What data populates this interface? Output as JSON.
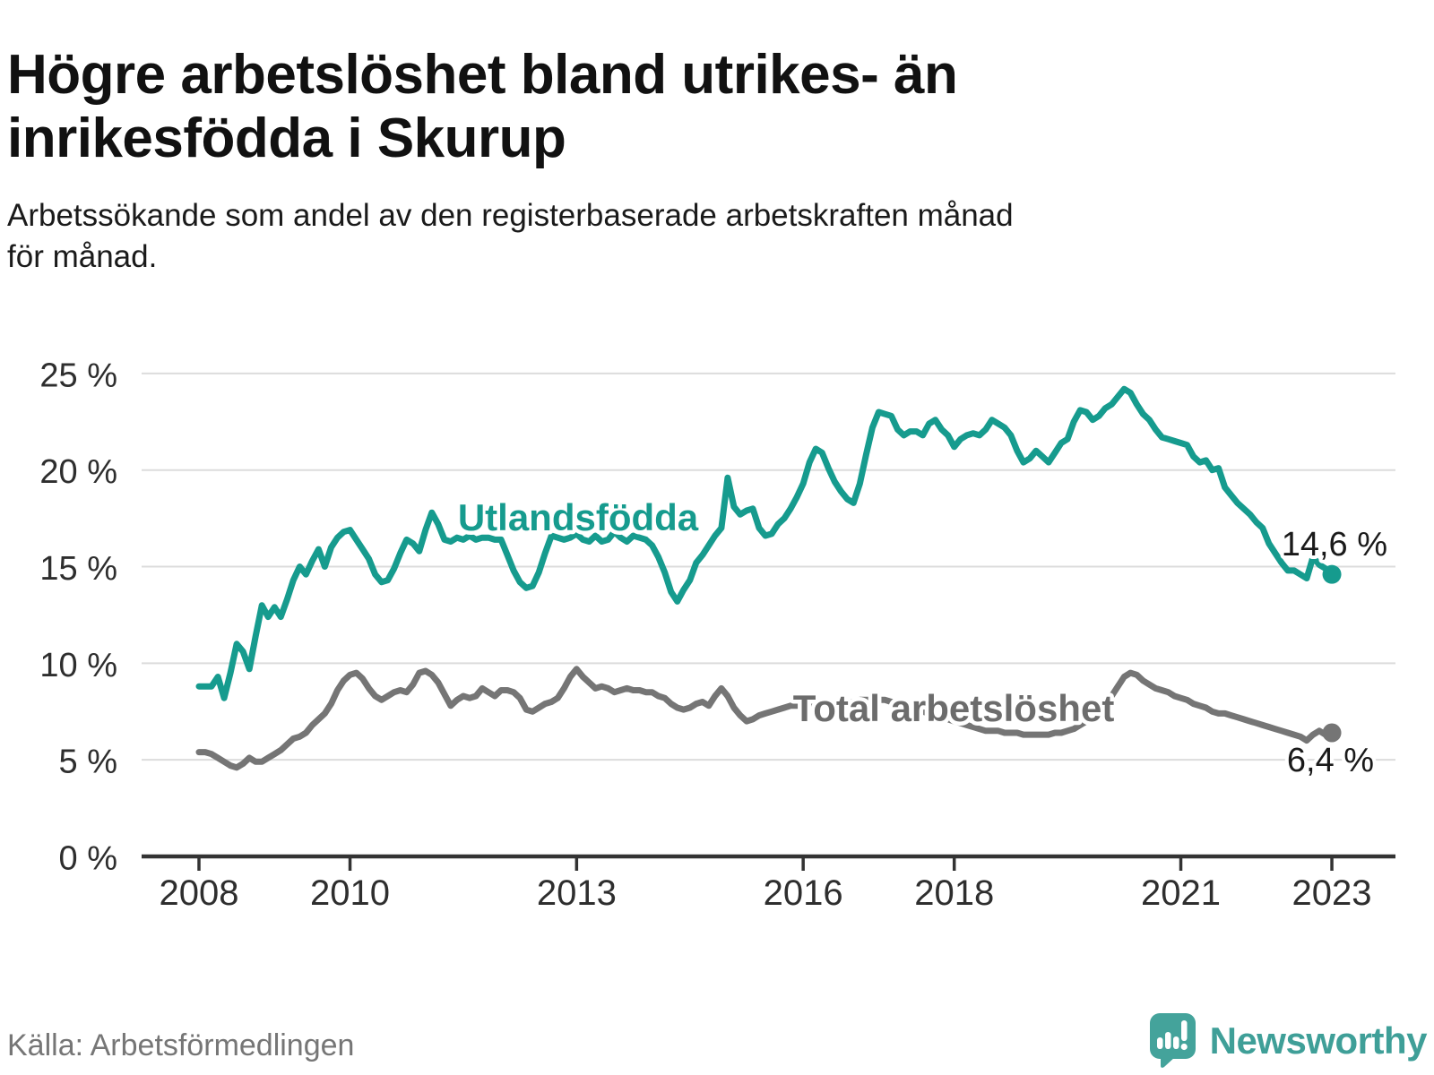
{
  "header": {
    "title": "Högre arbetslöshet bland utrikes- än\ninrikesfödda i Skurup",
    "subtitle": "Arbetssökande som andel av den registerbaserade arbetskraften månad\nför månad."
  },
  "footer": {
    "source": "Källa: Arbetsförmedlingen",
    "brand": "Newsworthy",
    "logo_icon": "newsworthy-speech-bubble-bar-chart-icon"
  },
  "colors": {
    "foreign_born_line": "#169b8e",
    "total_line": "#757575",
    "total_label": "#6c6c6c",
    "gridline": "#dcdcdc",
    "axis": "#333333",
    "tick_label": "#2e2e2e",
    "value_label": "#1a1a1a",
    "logo": "#3f9f98",
    "background": "#ffffff"
  },
  "chart_data": {
    "type": "line",
    "unit": "%",
    "frequency": "monthly",
    "x_start": "2008-01",
    "x_end": "2023-01",
    "ylim": [
      0,
      25
    ],
    "yticks": [
      0,
      5,
      10,
      15,
      20,
      25
    ],
    "ytick_labels": [
      "0 %",
      "5 %",
      "10 %",
      "15 %",
      "20 %",
      "25 %"
    ],
    "xticks": [
      2008,
      2010,
      2013,
      2016,
      2018,
      2021,
      2023
    ],
    "xtick_labels": [
      "2008",
      "2010",
      "2013",
      "2016",
      "2018",
      "2021",
      "2023"
    ],
    "grid": true,
    "legend_position": "inline-labels",
    "series": [
      {
        "name": "Utlandsfödda",
        "color": "#169b8e",
        "end_label": "14,6 %",
        "end_value": 14.6,
        "values": [
          8.8,
          8.8,
          8.8,
          9.3,
          8.2,
          9.5,
          11.0,
          10.6,
          9.7,
          11.4,
          13.0,
          12.4,
          12.9,
          12.4,
          13.3,
          14.3,
          15.0,
          14.6,
          15.3,
          15.9,
          15.0,
          16.0,
          16.5,
          16.8,
          16.9,
          16.4,
          15.9,
          15.4,
          14.6,
          14.2,
          14.3,
          14.9,
          15.7,
          16.4,
          16.2,
          15.8,
          16.9,
          17.8,
          17.2,
          16.4,
          16.3,
          16.5,
          16.4,
          16.6,
          16.4,
          16.5,
          16.5,
          16.4,
          16.4,
          15.6,
          14.8,
          14.2,
          13.9,
          14.0,
          14.7,
          15.7,
          16.6,
          16.5,
          16.4,
          16.5,
          16.7,
          16.4,
          16.3,
          16.6,
          16.3,
          16.4,
          16.8,
          16.5,
          16.3,
          16.6,
          16.5,
          16.4,
          16.1,
          15.5,
          14.7,
          13.7,
          13.2,
          13.8,
          14.3,
          15.2,
          15.6,
          16.1,
          16.6,
          17.0,
          19.6,
          18.1,
          17.7,
          17.9,
          18.0,
          17.0,
          16.6,
          16.7,
          17.2,
          17.5,
          18.0,
          18.6,
          19.3,
          20.4,
          21.1,
          20.9,
          20.1,
          19.4,
          18.9,
          18.5,
          18.3,
          19.3,
          20.8,
          22.2,
          23.0,
          22.9,
          22.8,
          22.1,
          21.8,
          22.0,
          22.0,
          21.8,
          22.4,
          22.6,
          22.1,
          21.8,
          21.2,
          21.6,
          21.8,
          21.9,
          21.8,
          22.1,
          22.6,
          22.4,
          22.2,
          21.8,
          21.0,
          20.4,
          20.6,
          21.0,
          20.7,
          20.4,
          20.9,
          21.4,
          21.6,
          22.5,
          23.1,
          23.0,
          22.6,
          22.8,
          23.2,
          23.4,
          23.8,
          24.2,
          24.0,
          23.4,
          22.9,
          22.6,
          22.1,
          21.7,
          21.6,
          21.5,
          21.4,
          21.3,
          20.7,
          20.4,
          20.5,
          20.0,
          20.1,
          19.1,
          18.7,
          18.3,
          18.0,
          17.7,
          17.3,
          17.0,
          16.2,
          15.7,
          15.2,
          14.8,
          14.8,
          14.6,
          14.4,
          15.5,
          15.1,
          14.9,
          14.6
        ]
      },
      {
        "name": "Total arbetslöshet",
        "color": "#757575",
        "end_label": "6,4 %",
        "end_value": 6.4,
        "values": [
          5.4,
          5.4,
          5.3,
          5.1,
          4.9,
          4.7,
          4.6,
          4.8,
          5.1,
          4.9,
          4.9,
          5.1,
          5.3,
          5.5,
          5.8,
          6.1,
          6.2,
          6.4,
          6.8,
          7.1,
          7.4,
          7.9,
          8.6,
          9.1,
          9.4,
          9.5,
          9.2,
          8.7,
          8.3,
          8.1,
          8.3,
          8.5,
          8.6,
          8.5,
          8.9,
          9.5,
          9.6,
          9.4,
          9.0,
          8.4,
          7.8,
          8.1,
          8.3,
          8.2,
          8.3,
          8.7,
          8.5,
          8.3,
          8.6,
          8.6,
          8.5,
          8.2,
          7.6,
          7.5,
          7.7,
          7.9,
          8.0,
          8.2,
          8.7,
          9.3,
          9.7,
          9.3,
          9.0,
          8.7,
          8.8,
          8.7,
          8.5,
          8.6,
          8.7,
          8.6,
          8.6,
          8.5,
          8.5,
          8.3,
          8.2,
          7.9,
          7.7,
          7.6,
          7.7,
          7.9,
          8.0,
          7.8,
          8.3,
          8.7,
          8.3,
          7.7,
          7.3,
          7.0,
          7.1,
          7.3,
          7.4,
          7.5,
          7.6,
          7.7,
          7.8,
          7.8,
          7.9,
          7.9,
          8.0,
          8.0,
          8.0,
          7.9,
          7.9,
          8.0,
          8.0,
          8.1,
          8.1,
          8.1,
          8.1,
          8.1,
          8.0,
          7.9,
          7.8,
          7.7,
          7.6,
          7.5,
          7.4,
          7.3,
          7.2,
          7.1,
          7.0,
          6.9,
          6.8,
          6.7,
          6.6,
          6.5,
          6.5,
          6.5,
          6.4,
          6.4,
          6.4,
          6.3,
          6.3,
          6.3,
          6.3,
          6.3,
          6.4,
          6.4,
          6.5,
          6.6,
          6.8,
          7.0,
          7.3,
          7.7,
          8.0,
          8.3,
          8.8,
          9.3,
          9.5,
          9.4,
          9.1,
          8.9,
          8.7,
          8.6,
          8.5,
          8.3,
          8.2,
          8.1,
          7.9,
          7.8,
          7.7,
          7.5,
          7.4,
          7.4,
          7.3,
          7.2,
          7.1,
          7.0,
          6.9,
          6.8,
          6.7,
          6.6,
          6.5,
          6.4,
          6.3,
          6.2,
          6.0,
          6.3,
          6.5,
          6.3,
          6.4
        ]
      }
    ]
  }
}
